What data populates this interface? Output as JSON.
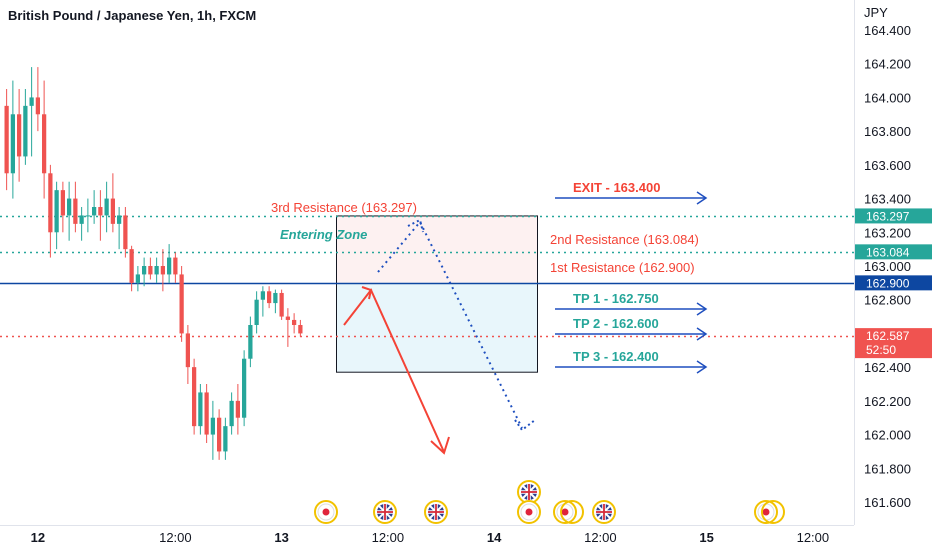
{
  "chart_data": {
    "type": "candlestick",
    "title": "British Pound / Japanese Yen, 1h, FXCM",
    "currency": "JPY",
    "ylim": [
      161.45,
      164.5
    ],
    "y_ticks": [
      "164.400",
      "164.200",
      "164.000",
      "163.800",
      "163.600",
      "163.400",
      "163.200",
      "163.000",
      "162.800",
      "162.400",
      "162.200",
      "162.000",
      "161.800",
      "161.600"
    ],
    "x_ticks": [
      {
        "label": "12",
        "bold": true,
        "bar": 5.5
      },
      {
        "label": "12:00",
        "bold": false,
        "bar": 27.5
      },
      {
        "label": "13",
        "bold": true,
        "bar": 44.5
      },
      {
        "label": "12:00",
        "bold": false,
        "bar": 61.5
      },
      {
        "label": "14",
        "bold": true,
        "bar": 78.5
      },
      {
        "label": "12:00",
        "bold": false,
        "bar": 95.5
      },
      {
        "label": "15",
        "bold": true,
        "bar": 112.5
      },
      {
        "label": "12:00",
        "bold": false,
        "bar": 129.5
      }
    ],
    "colors": {
      "up": "#26a69a",
      "down": "#ef5350",
      "level_blue": "#0d47a1",
      "teal": "#26a69a",
      "red": "#f44336",
      "arrow_blue": "#1e4fbf"
    },
    "candles": [
      [
        163.95,
        164.05,
        163.45,
        163.55
      ],
      [
        163.55,
        164.1,
        163.4,
        163.9
      ],
      [
        163.9,
        164.05,
        163.5,
        163.65
      ],
      [
        163.65,
        164.05,
        163.6,
        163.95
      ],
      [
        163.95,
        164.18,
        163.65,
        164.0
      ],
      [
        164.0,
        164.18,
        163.8,
        163.9
      ],
      [
        163.9,
        164.1,
        163.4,
        163.55
      ],
      [
        163.55,
        163.6,
        163.05,
        163.2
      ],
      [
        163.2,
        163.5,
        163.1,
        163.45
      ],
      [
        163.45,
        163.5,
        163.2,
        163.3
      ],
      [
        163.3,
        163.5,
        163.15,
        163.4
      ],
      [
        163.4,
        163.5,
        163.2,
        163.25
      ],
      [
        163.25,
        163.35,
        163.15,
        163.3
      ],
      [
        163.3,
        163.4,
        163.2,
        163.3
      ],
      [
        163.3,
        163.45,
        163.25,
        163.35
      ],
      [
        163.35,
        163.45,
        163.15,
        163.3
      ],
      [
        163.3,
        163.5,
        163.2,
        163.4
      ],
      [
        163.4,
        163.55,
        163.2,
        163.25
      ],
      [
        163.25,
        163.35,
        163.1,
        163.3
      ],
      [
        163.3,
        163.35,
        163.05,
        163.1
      ],
      [
        163.1,
        163.12,
        162.85,
        162.9
      ],
      [
        162.9,
        163.0,
        162.85,
        162.95
      ],
      [
        162.95,
        163.05,
        162.88,
        163.0
      ],
      [
        163.0,
        163.05,
        162.92,
        162.95
      ],
      [
        162.95,
        163.05,
        162.9,
        163.0
      ],
      [
        163.0,
        163.1,
        162.85,
        162.95
      ],
      [
        162.95,
        163.13,
        162.9,
        163.05
      ],
      [
        163.05,
        163.08,
        162.9,
        162.95
      ],
      [
        162.95,
        163.0,
        162.55,
        162.6
      ],
      [
        162.6,
        162.65,
        162.3,
        162.4
      ],
      [
        162.4,
        162.45,
        162.0,
        162.05
      ],
      [
        162.05,
        162.3,
        162.0,
        162.25
      ],
      [
        162.25,
        162.3,
        161.95,
        162.0
      ],
      [
        162.0,
        162.2,
        161.85,
        162.1
      ],
      [
        162.1,
        162.15,
        161.85,
        161.9
      ],
      [
        161.9,
        162.1,
        161.85,
        162.05
      ],
      [
        162.05,
        162.25,
        162.0,
        162.2
      ],
      [
        162.2,
        162.3,
        162.0,
        162.1
      ],
      [
        162.1,
        162.5,
        162.05,
        162.45
      ],
      [
        162.45,
        162.7,
        162.4,
        162.65
      ],
      [
        162.65,
        162.85,
        162.6,
        162.8
      ],
      [
        162.8,
        162.88,
        162.7,
        162.85
      ],
      [
        162.85,
        162.88,
        162.75,
        162.78
      ],
      [
        162.78,
        162.86,
        162.72,
        162.84
      ],
      [
        162.84,
        162.86,
        162.68,
        162.7
      ],
      [
        162.7,
        162.75,
        162.52,
        162.68
      ],
      [
        162.68,
        162.72,
        162.6,
        162.65
      ],
      [
        162.65,
        162.68,
        162.58,
        162.6
      ]
    ],
    "levels": [
      {
        "name": "3rd Resistance",
        "value": 163.297,
        "label": "163.297",
        "color": "#26a69a",
        "style": "dotted",
        "tag_color": "#26a69a"
      },
      {
        "name": "2nd Resistance",
        "value": 163.084,
        "label": "163.084",
        "color": "#26a69a",
        "style": "dotted",
        "tag_color": "#26a69a"
      },
      {
        "name": "1st Resistance",
        "value": 162.9,
        "label": "162.900",
        "color": "#0d47a1",
        "style": "solid",
        "tag_color": "#0d47a1"
      },
      {
        "name": "Current Price",
        "value": 162.587,
        "label": "162.587",
        "countdown": "52:50",
        "color": "#ef5350",
        "style": "dotted",
        "tag_color": "#f05350"
      }
    ],
    "entering_zone": {
      "label": "Entering Zone",
      "top": 163.297,
      "mid": 162.9,
      "bottom": 162.37
    },
    "annotations": {
      "r3": "3rd Resistance (163.297)",
      "r2": "2nd Resistance (163.084)",
      "r1": "1st Resistance (162.900)",
      "exit": "EXIT - 163.400",
      "tp1": "TP 1 - 162.750",
      "tp2": "TP 2 - 162.600",
      "tp3": "TP 3 - 162.400"
    },
    "event_icons": [
      "jp-flag",
      "uk-flag",
      "uk-flag",
      "uk-flag",
      "jp-flag",
      "jp-flag",
      "uk-flag",
      "jp-flag"
    ]
  }
}
